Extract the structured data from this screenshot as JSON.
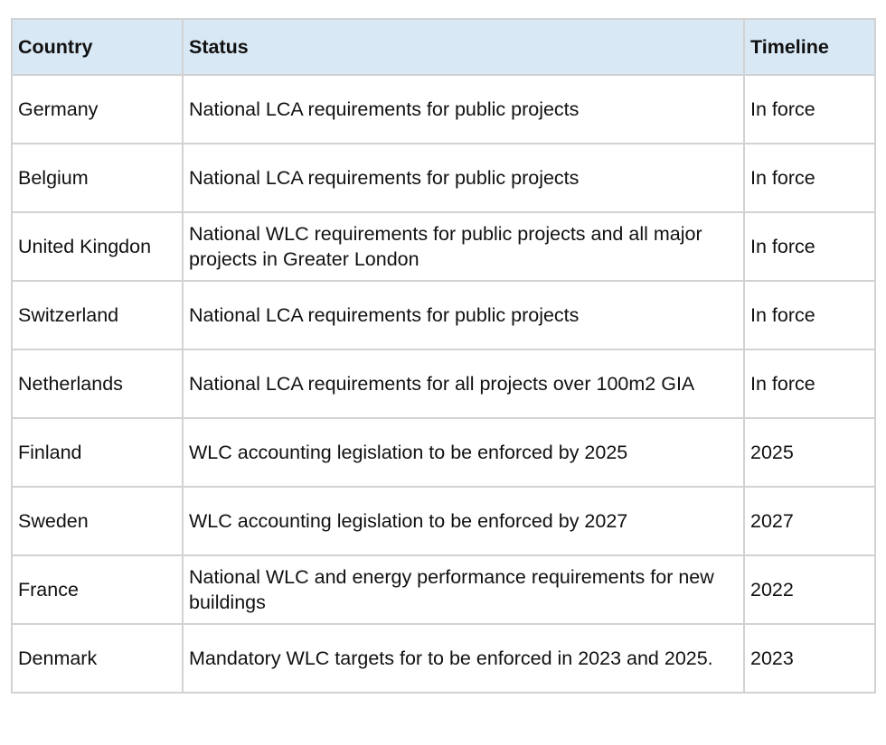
{
  "table": {
    "headers": [
      "Country",
      "Status",
      "Timeline"
    ],
    "rows": [
      {
        "country": "Germany",
        "status": "National LCA requirements for public projects",
        "timeline": "In force"
      },
      {
        "country": "Belgium",
        "status": "National LCA requirements for public projects",
        "timeline": "In force"
      },
      {
        "country": "United Kingdon",
        "status": "National WLC requirements for public projects and all major projects in Greater London",
        "timeline": "In force"
      },
      {
        "country": "Switzerland",
        "status": "National LCA requirements for public projects",
        "timeline": "In force"
      },
      {
        "country": "Netherlands",
        "status": "National LCA requirements for all projects over 100m2 GIA",
        "timeline": "In force"
      },
      {
        "country": "Finland",
        "status": "WLC accounting legislation to be enforced by 2025",
        "timeline": "2025"
      },
      {
        "country": "Sweden",
        "status": "WLC accounting legislation to be enforced by 2027",
        "timeline": "2027"
      },
      {
        "country": "France",
        "status": "National WLC and energy performance requirements for new buildings",
        "timeline": "2022"
      },
      {
        "country": "Denmark",
        "status": "Mandatory WLC targets for to be enforced in 2023 and 2025.",
        "timeline": "2023"
      }
    ]
  }
}
